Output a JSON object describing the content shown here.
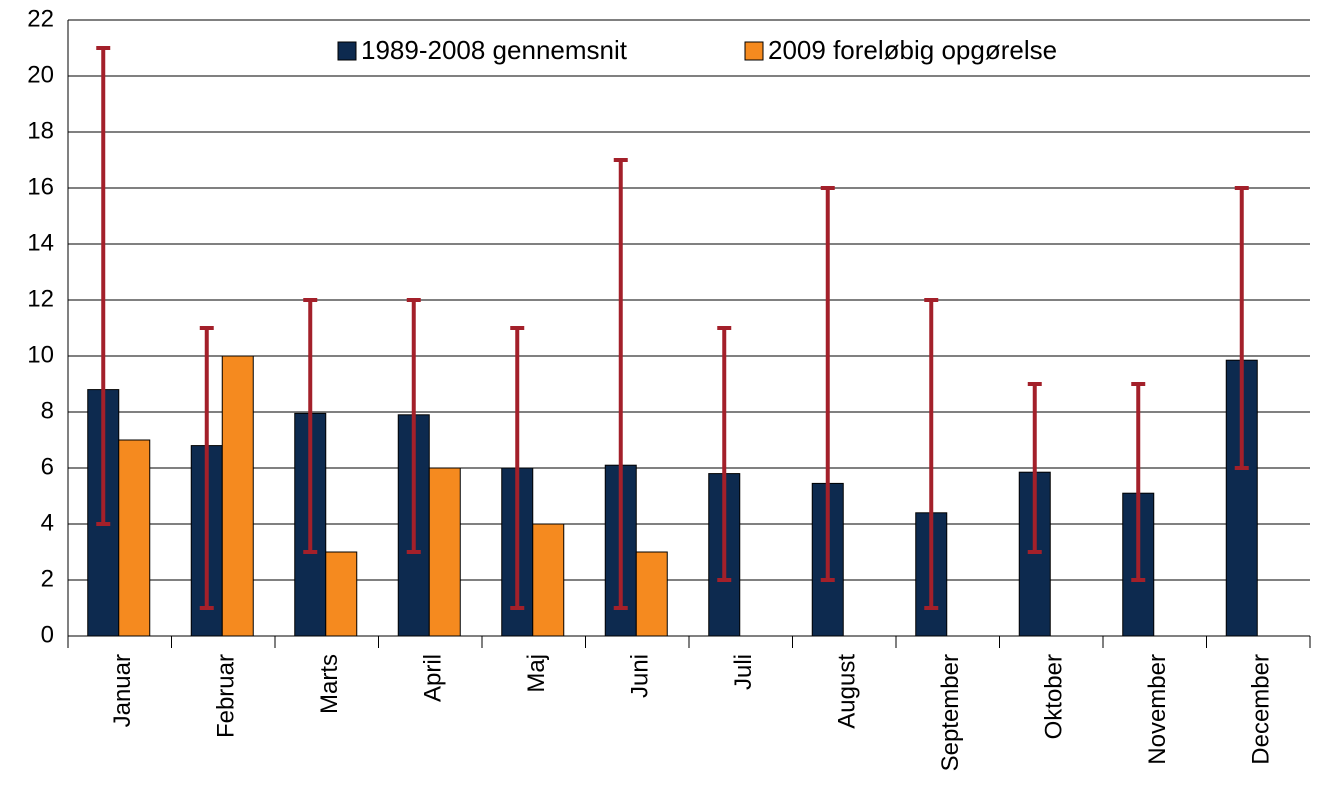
{
  "chart_data": {
    "type": "bar",
    "categories": [
      "Januar",
      "Februar",
      "Marts",
      "April",
      "Maj",
      "Juni",
      "Juli",
      "August",
      "September",
      "Oktober",
      "November",
      "December"
    ],
    "series": [
      {
        "name": "1989-2008 gennemsnit",
        "color": "#0d2a4f",
        "values": [
          8.8,
          6.8,
          7.95,
          7.9,
          6.0,
          6.1,
          5.8,
          5.45,
          4.4,
          5.85,
          5.1,
          9.85
        ]
      },
      {
        "name": "2009 foreløbig opgørelse",
        "color": "#f58a1f",
        "values": [
          7,
          10,
          3,
          6,
          4,
          3,
          null,
          null,
          null,
          null,
          null,
          null
        ]
      }
    ],
    "range_low": [
      4,
      1,
      3,
      3,
      1,
      1,
      2,
      2,
      1,
      3,
      2,
      6
    ],
    "range_high": [
      21,
      11,
      12,
      12,
      11,
      17,
      11,
      16,
      12,
      9,
      9,
      16
    ],
    "range_color": "#a3202a",
    "ylim": [
      0,
      22
    ],
    "yticks": [
      0,
      2,
      4,
      6,
      8,
      10,
      12,
      14,
      16,
      18,
      20,
      22
    ],
    "grid": true,
    "legend": "top"
  }
}
